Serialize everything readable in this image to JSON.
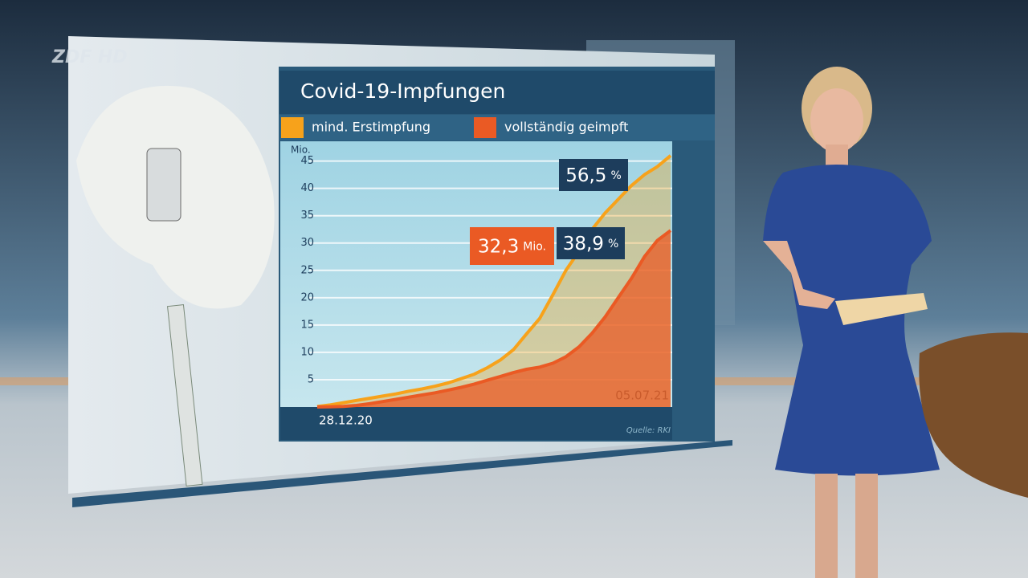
{
  "channel_logo": "ZDF HD",
  "chart_data": {
    "type": "line",
    "title": "Covid-19-Impfungen",
    "y_label": "Mio.",
    "categories": [
      "28.12.20",
      null,
      null,
      null,
      null,
      null,
      null,
      null,
      null,
      null,
      null,
      null,
      null,
      null,
      null,
      null,
      null,
      null,
      null,
      null,
      null,
      null,
      null,
      null,
      null,
      null,
      null,
      "05.07.21"
    ],
    "series": [
      {
        "name": "mind. Erstimpfung",
        "color": "#f7a21b",
        "values": [
          0.1,
          0.4,
          0.8,
          1.2,
          1.6,
          2.0,
          2.4,
          2.9,
          3.3,
          3.8,
          4.4,
          5.2,
          6.0,
          7.2,
          8.6,
          10.5,
          13.4,
          16.2,
          20.5,
          25.0,
          28.5,
          32.5,
          35.5,
          38.0,
          40.5,
          42.5,
          44.0,
          46.0
        ]
      },
      {
        "name": "vollständig geimpft",
        "color": "#ea5a24",
        "values": [
          0,
          0.05,
          0.1,
          0.3,
          0.6,
          1.0,
          1.4,
          1.8,
          2.2,
          2.6,
          3.1,
          3.6,
          4.2,
          4.9,
          5.6,
          6.3,
          6.9,
          7.3,
          8.0,
          9.2,
          11.0,
          13.5,
          16.5,
          20.0,
          23.5,
          27.5,
          30.5,
          32.3
        ]
      }
    ],
    "ylim": [
      0,
      47
    ],
    "yticks": [
      5,
      10,
      15,
      20,
      25,
      30,
      35,
      40,
      45
    ],
    "grid": true,
    "annotations": [
      {
        "value": "56,5",
        "unit": "%",
        "color": "#1d3d5c"
      },
      {
        "value": "32,3",
        "unit": "Mio.",
        "color": "#ea5a24"
      },
      {
        "value": "38,9",
        "unit": "%",
        "color": "#1d3d5c"
      }
    ],
    "source": "Quelle: RKI"
  }
}
